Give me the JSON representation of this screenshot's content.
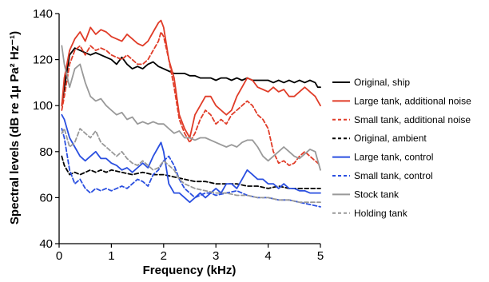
{
  "chart_data": {
    "type": "line",
    "title": "",
    "xlabel": "Frequency (kHz)",
    "ylabel": "Spectral levels (dB re 1μ Pa² Hz⁻¹)",
    "xlim": [
      0,
      5
    ],
    "ylim": [
      40,
      140
    ],
    "xticks": [
      0,
      1,
      2,
      3,
      4,
      5
    ],
    "yticks": [
      40,
      60,
      80,
      100,
      120,
      140
    ],
    "grid": false,
    "legend_position": "right",
    "series": [
      {
        "name": "Original, ship",
        "color": "#000000",
        "dash": "solid",
        "x": [
          0.05,
          0.1,
          0.2,
          0.3,
          0.4,
          0.5,
          0.6,
          0.7,
          0.8,
          0.9,
          1.0,
          1.1,
          1.2,
          1.3,
          1.4,
          1.5,
          1.6,
          1.7,
          1.8,
          1.9,
          2.0,
          2.1,
          2.2,
          2.3,
          2.4,
          2.5,
          2.6,
          2.7,
          2.8,
          2.9,
          3.0,
          3.1,
          3.2,
          3.3,
          3.4,
          3.5,
          3.6,
          3.7,
          3.8,
          3.9,
          4.0,
          4.1,
          4.2,
          4.3,
          4.4,
          4.5,
          4.6,
          4.7,
          4.8,
          4.9,
          4.95,
          5.0
        ],
        "y": [
          100,
          108,
          122,
          125,
          124,
          123,
          122,
          123,
          122,
          121,
          120,
          118,
          121,
          118,
          116,
          117,
          116,
          118,
          119,
          117,
          116,
          115,
          114,
          114,
          114,
          113,
          113,
          112,
          112,
          112,
          111,
          112,
          112,
          111,
          112,
          111,
          112,
          111,
          111,
          111,
          111,
          110,
          111,
          110,
          111,
          110,
          111,
          110,
          111,
          110,
          108,
          108
        ]
      },
      {
        "name": "Large tank, additional noise",
        "color": "#e03c28",
        "dash": "solid",
        "x": [
          0.05,
          0.1,
          0.2,
          0.3,
          0.4,
          0.5,
          0.6,
          0.7,
          0.8,
          0.9,
          1.0,
          1.1,
          1.2,
          1.3,
          1.4,
          1.5,
          1.6,
          1.7,
          1.8,
          1.9,
          1.95,
          2.0,
          2.1,
          2.2,
          2.3,
          2.4,
          2.5,
          2.6,
          2.7,
          2.8,
          2.9,
          3.0,
          3.1,
          3.2,
          3.3,
          3.4,
          3.5,
          3.6,
          3.7,
          3.8,
          3.9,
          4.0,
          4.1,
          4.2,
          4.3,
          4.4,
          4.5,
          4.6,
          4.7,
          4.8,
          4.9,
          5.0
        ],
        "y": [
          100,
          112,
          124,
          129,
          132,
          128,
          134,
          131,
          133,
          132,
          130,
          129,
          128,
          131,
          129,
          127,
          126,
          128,
          132,
          136,
          137,
          134,
          120,
          112,
          96,
          90,
          86,
          96,
          100,
          104,
          104,
          100,
          98,
          96,
          98,
          104,
          108,
          112,
          111,
          108,
          107,
          106,
          108,
          106,
          107,
          104,
          104,
          106,
          108,
          106,
          104,
          100
        ]
      },
      {
        "name": "Small tank, additional noise",
        "color": "#e03c28",
        "dash": "dash",
        "x": [
          0.05,
          0.1,
          0.2,
          0.3,
          0.4,
          0.5,
          0.6,
          0.7,
          0.8,
          0.9,
          1.0,
          1.1,
          1.2,
          1.3,
          1.4,
          1.5,
          1.6,
          1.7,
          1.8,
          1.9,
          1.95,
          2.0,
          2.1,
          2.2,
          2.3,
          2.4,
          2.5,
          2.6,
          2.7,
          2.8,
          2.9,
          3.0,
          3.1,
          3.2,
          3.3,
          3.4,
          3.5,
          3.6,
          3.7,
          3.8,
          3.9,
          4.0,
          4.1,
          4.2,
          4.3,
          4.4,
          4.5,
          4.6,
          4.7,
          4.8,
          4.9,
          5.0
        ],
        "y": [
          98,
          104,
          118,
          124,
          126,
          122,
          126,
          124,
          125,
          124,
          122,
          121,
          120,
          122,
          120,
          118,
          118,
          120,
          124,
          128,
          132,
          130,
          120,
          108,
          94,
          88,
          84,
          88,
          94,
          98,
          96,
          92,
          94,
          92,
          96,
          98,
          100,
          102,
          100,
          96,
          94,
          90,
          80,
          75,
          76,
          74,
          75,
          78,
          80,
          78,
          76,
          74
        ]
      },
      {
        "name": "Original, ambient",
        "color": "#000000",
        "dash": "dash",
        "x": [
          0.05,
          0.1,
          0.2,
          0.3,
          0.4,
          0.5,
          0.6,
          0.7,
          0.8,
          0.9,
          1.0,
          1.2,
          1.4,
          1.6,
          1.8,
          2.0,
          2.2,
          2.4,
          2.6,
          2.8,
          3.0,
          3.2,
          3.4,
          3.6,
          3.8,
          4.0,
          4.2,
          4.4,
          4.6,
          4.8,
          5.0
        ],
        "y": [
          78,
          74,
          70,
          71,
          70,
          71,
          72,
          71,
          72,
          71,
          72,
          71,
          70,
          71,
          70,
          70,
          69,
          68,
          67,
          67,
          66,
          66,
          66,
          65,
          65,
          64,
          65,
          64,
          64,
          64,
          64
        ]
      },
      {
        "name": "Large tank, control",
        "color": "#2a4fe0",
        "dash": "solid",
        "x": [
          0.05,
          0.1,
          0.2,
          0.3,
          0.4,
          0.5,
          0.6,
          0.7,
          0.8,
          0.9,
          1.0,
          1.1,
          1.2,
          1.3,
          1.4,
          1.5,
          1.6,
          1.7,
          1.8,
          1.9,
          1.95,
          2.0,
          2.1,
          2.2,
          2.3,
          2.4,
          2.5,
          2.6,
          2.7,
          2.8,
          2.9,
          3.0,
          3.1,
          3.2,
          3.3,
          3.4,
          3.5,
          3.6,
          3.7,
          3.8,
          3.9,
          4.0,
          4.1,
          4.2,
          4.3,
          4.4,
          4.5,
          4.6,
          4.7,
          4.8,
          4.9,
          5.0
        ],
        "y": [
          96,
          94,
          86,
          82,
          78,
          76,
          78,
          80,
          77,
          77,
          75,
          74,
          72,
          73,
          71,
          73,
          75,
          73,
          78,
          82,
          84,
          80,
          66,
          62,
          62,
          60,
          58,
          60,
          62,
          60,
          62,
          64,
          62,
          66,
          66,
          64,
          68,
          72,
          70,
          68,
          68,
          66,
          66,
          64,
          66,
          64,
          64,
          63,
          63,
          62,
          62,
          62
        ]
      },
      {
        "name": "Small tank, control",
        "color": "#2a4fe0",
        "dash": "dash",
        "x": [
          0.05,
          0.1,
          0.2,
          0.3,
          0.4,
          0.5,
          0.6,
          0.7,
          0.8,
          0.9,
          1.0,
          1.1,
          1.2,
          1.3,
          1.4,
          1.5,
          1.6,
          1.7,
          1.8,
          1.9,
          2.0,
          2.1,
          2.2,
          2.3,
          2.4,
          2.5,
          2.6,
          2.7,
          2.8,
          2.9,
          3.0,
          3.2,
          3.4,
          3.6,
          3.8,
          4.0,
          4.2,
          4.4,
          4.6,
          4.8,
          5.0
        ],
        "y": [
          90,
          86,
          72,
          66,
          68,
          64,
          62,
          64,
          63,
          64,
          63,
          64,
          65,
          64,
          66,
          68,
          67,
          65,
          70,
          72,
          76,
          78,
          74,
          68,
          64,
          62,
          60,
          61,
          62,
          62,
          61,
          62,
          63,
          61,
          60,
          60,
          59,
          59,
          58,
          57,
          56
        ]
      },
      {
        "name": "Stock tank",
        "color": "#999999",
        "dash": "solid",
        "x": [
          0.05,
          0.1,
          0.2,
          0.3,
          0.4,
          0.5,
          0.6,
          0.7,
          0.8,
          0.9,
          1.0,
          1.1,
          1.2,
          1.3,
          1.4,
          1.5,
          1.6,
          1.7,
          1.8,
          1.9,
          2.0,
          2.1,
          2.2,
          2.3,
          2.4,
          2.5,
          2.6,
          2.7,
          2.8,
          2.9,
          3.0,
          3.1,
          3.2,
          3.3,
          3.4,
          3.5,
          3.6,
          3.7,
          3.8,
          3.9,
          4.0,
          4.1,
          4.2,
          4.3,
          4.4,
          4.5,
          4.6,
          4.7,
          4.8,
          4.9,
          5.0
        ],
        "y": [
          126,
          118,
          108,
          116,
          118,
          110,
          104,
          102,
          103,
          100,
          98,
          96,
          97,
          94,
          95,
          92,
          93,
          92,
          93,
          92,
          92,
          90,
          88,
          89,
          86,
          86,
          85,
          86,
          86,
          85,
          84,
          83,
          82,
          83,
          82,
          84,
          85,
          85,
          82,
          78,
          76,
          78,
          80,
          82,
          80,
          78,
          77,
          79,
          81,
          80,
          72
        ]
      },
      {
        "name": "Holding tank",
        "color": "#999999",
        "dash": "dash",
        "x": [
          0.05,
          0.1,
          0.2,
          0.3,
          0.4,
          0.5,
          0.6,
          0.7,
          0.8,
          0.9,
          1.0,
          1.1,
          1.2,
          1.3,
          1.4,
          1.5,
          1.6,
          1.7,
          1.8,
          1.9,
          2.0,
          2.1,
          2.2,
          2.3,
          2.4,
          2.6,
          2.8,
          3.0,
          3.2,
          3.4,
          3.6,
          3.8,
          4.0,
          4.2,
          4.4,
          4.6,
          4.8,
          5.0
        ],
        "y": [
          88,
          90,
          82,
          84,
          90,
          88,
          86,
          89,
          84,
          82,
          80,
          78,
          80,
          77,
          75,
          74,
          76,
          74,
          72,
          73,
          76,
          74,
          72,
          68,
          66,
          64,
          63,
          62,
          62,
          61,
          61,
          60,
          60,
          59,
          59,
          58,
          58,
          58
        ]
      }
    ]
  }
}
